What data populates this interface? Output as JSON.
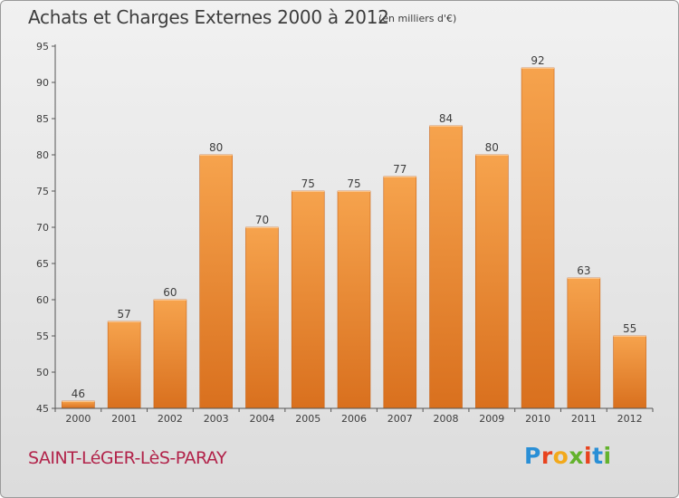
{
  "title": "Achats et Charges Externes 2000 à 2012",
  "subtitle": "(en milliers d'€)",
  "commune": "SAINT-LéGER-LèS-PARAY",
  "logo": {
    "text": "Proxiti",
    "letter_colors": [
      "#2a8fd6",
      "#e8431e",
      "#f2a91b",
      "#63b22c",
      "#e8431e",
      "#2a8fd6",
      "#63b22c"
    ]
  },
  "colors": {
    "bar_top": "#f6a34d",
    "bar_bottom": "#d9701e",
    "axis": "#555555",
    "text": "#3d3d3d"
  },
  "chart_data": {
    "type": "bar",
    "title": "Achats et Charges Externes 2000 à 2012",
    "xlabel": "",
    "ylabel": "",
    "ylim": [
      45,
      95
    ],
    "yticks": [
      45,
      50,
      55,
      60,
      65,
      70,
      75,
      80,
      85,
      90,
      95
    ],
    "grid": false,
    "categories": [
      "2000",
      "2001",
      "2002",
      "2003",
      "2004",
      "2005",
      "2006",
      "2007",
      "2008",
      "2009",
      "2010",
      "2011",
      "2012"
    ],
    "values": [
      46,
      57,
      60,
      80,
      70,
      75,
      75,
      77,
      84,
      80,
      92,
      63,
      55
    ]
  }
}
